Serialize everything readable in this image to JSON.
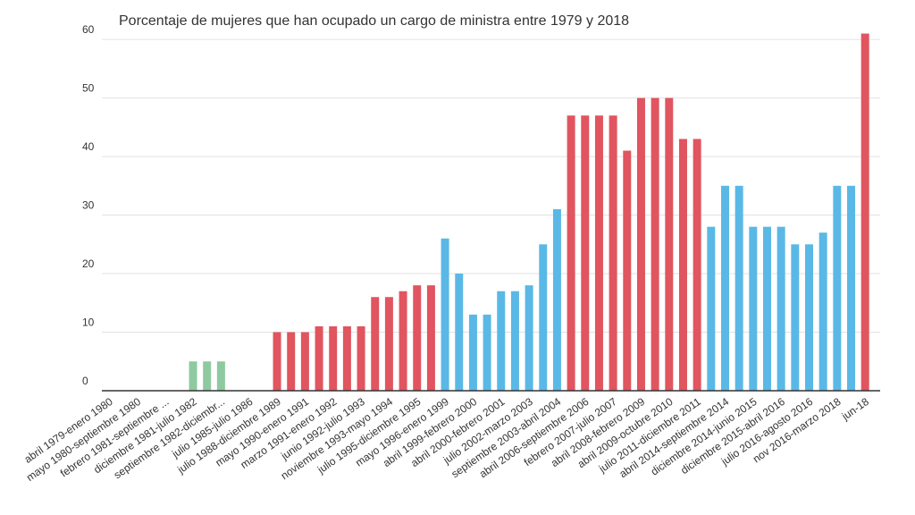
{
  "chart_data": {
    "type": "bar",
    "title": "Porcentaje de mujeres que han ocupado un cargo de ministra entre 1979 y 2018",
    "categories": [
      "abril 1979-enero 1980",
      null,
      "mayo 1980-septiembre 1980",
      null,
      "febrero 1981-septiembre ...",
      null,
      "diciembre 1981-julio 1982",
      null,
      "septiembre 1982-diciembr...",
      null,
      "julio 1985-julio 1986",
      null,
      "julio 1988-diciembre 1989",
      null,
      "mayo 1990-enero 1991",
      null,
      "marzo 1991-enero 1992",
      null,
      "junio 1992-julio 1993",
      null,
      "noviembre 1993-mayo 1994",
      null,
      "julio 1995-diciembre 1995",
      null,
      "mayo 1996-enero 1999",
      null,
      "abril 1999-febrero 2000",
      null,
      "abril 2000-febrero 2001",
      null,
      "julio 2002-marzo 2003",
      null,
      "septiembre 2003-abril 2004",
      null,
      "abril 2006-septiembre 2006",
      null,
      "febrero 2007-julio 2007",
      null,
      "abril 2008-febrero 2009",
      null,
      "abril 2009-octubre 2010",
      null,
      "julio 2011-diciembre 2011",
      null,
      "abril 2014-septiembre 2014",
      null,
      "diciembre 2014-junio 2015",
      null,
      "diciembre 2015-abril 2016",
      null,
      "julio 2016-agosto 2016",
      null,
      "nov 2016-marzo 2018",
      null,
      "jun-18"
    ],
    "values": [
      0,
      0,
      0,
      0,
      0,
      0,
      5,
      5,
      5,
      0,
      0,
      0,
      10,
      10,
      10,
      11,
      11,
      11,
      11,
      16,
      16,
      17,
      18,
      18,
      26,
      20,
      13,
      13,
      17,
      17,
      18,
      25,
      31,
      47,
      47,
      47,
      47,
      41,
      50,
      50,
      50,
      43,
      43,
      28,
      35,
      35,
      28,
      28,
      28,
      25,
      25,
      27,
      35,
      35,
      61
    ],
    "colors": [
      "#e0555f",
      "#e0555f",
      "#e0555f",
      "#e0555f",
      "#e0555f",
      "#e0555f",
      "#8fc9a0",
      "#8fc9a0",
      "#8fc9a0",
      "#e0555f",
      "#e0555f",
      "#e0555f",
      "#e0555f",
      "#e0555f",
      "#e0555f",
      "#e0555f",
      "#e0555f",
      "#e0555f",
      "#e0555f",
      "#e0555f",
      "#e0555f",
      "#e0555f",
      "#e0555f",
      "#e0555f",
      "#5ab8e6",
      "#5ab8e6",
      "#5ab8e6",
      "#5ab8e6",
      "#5ab8e6",
      "#5ab8e6",
      "#5ab8e6",
      "#5ab8e6",
      "#5ab8e6",
      "#e0555f",
      "#e0555f",
      "#e0555f",
      "#e0555f",
      "#e0555f",
      "#e0555f",
      "#e0555f",
      "#e0555f",
      "#e0555f",
      "#e0555f",
      "#5ab8e6",
      "#5ab8e6",
      "#5ab8e6",
      "#5ab8e6",
      "#5ab8e6",
      "#5ab8e6",
      "#5ab8e6",
      "#5ab8e6",
      "#5ab8e6",
      "#5ab8e6",
      "#5ab8e6",
      "#e0555f"
    ],
    "ylim": [
      0,
      62
    ],
    "yticks": [
      0,
      10,
      20,
      30,
      40,
      50,
      60
    ],
    "grid": true
  }
}
